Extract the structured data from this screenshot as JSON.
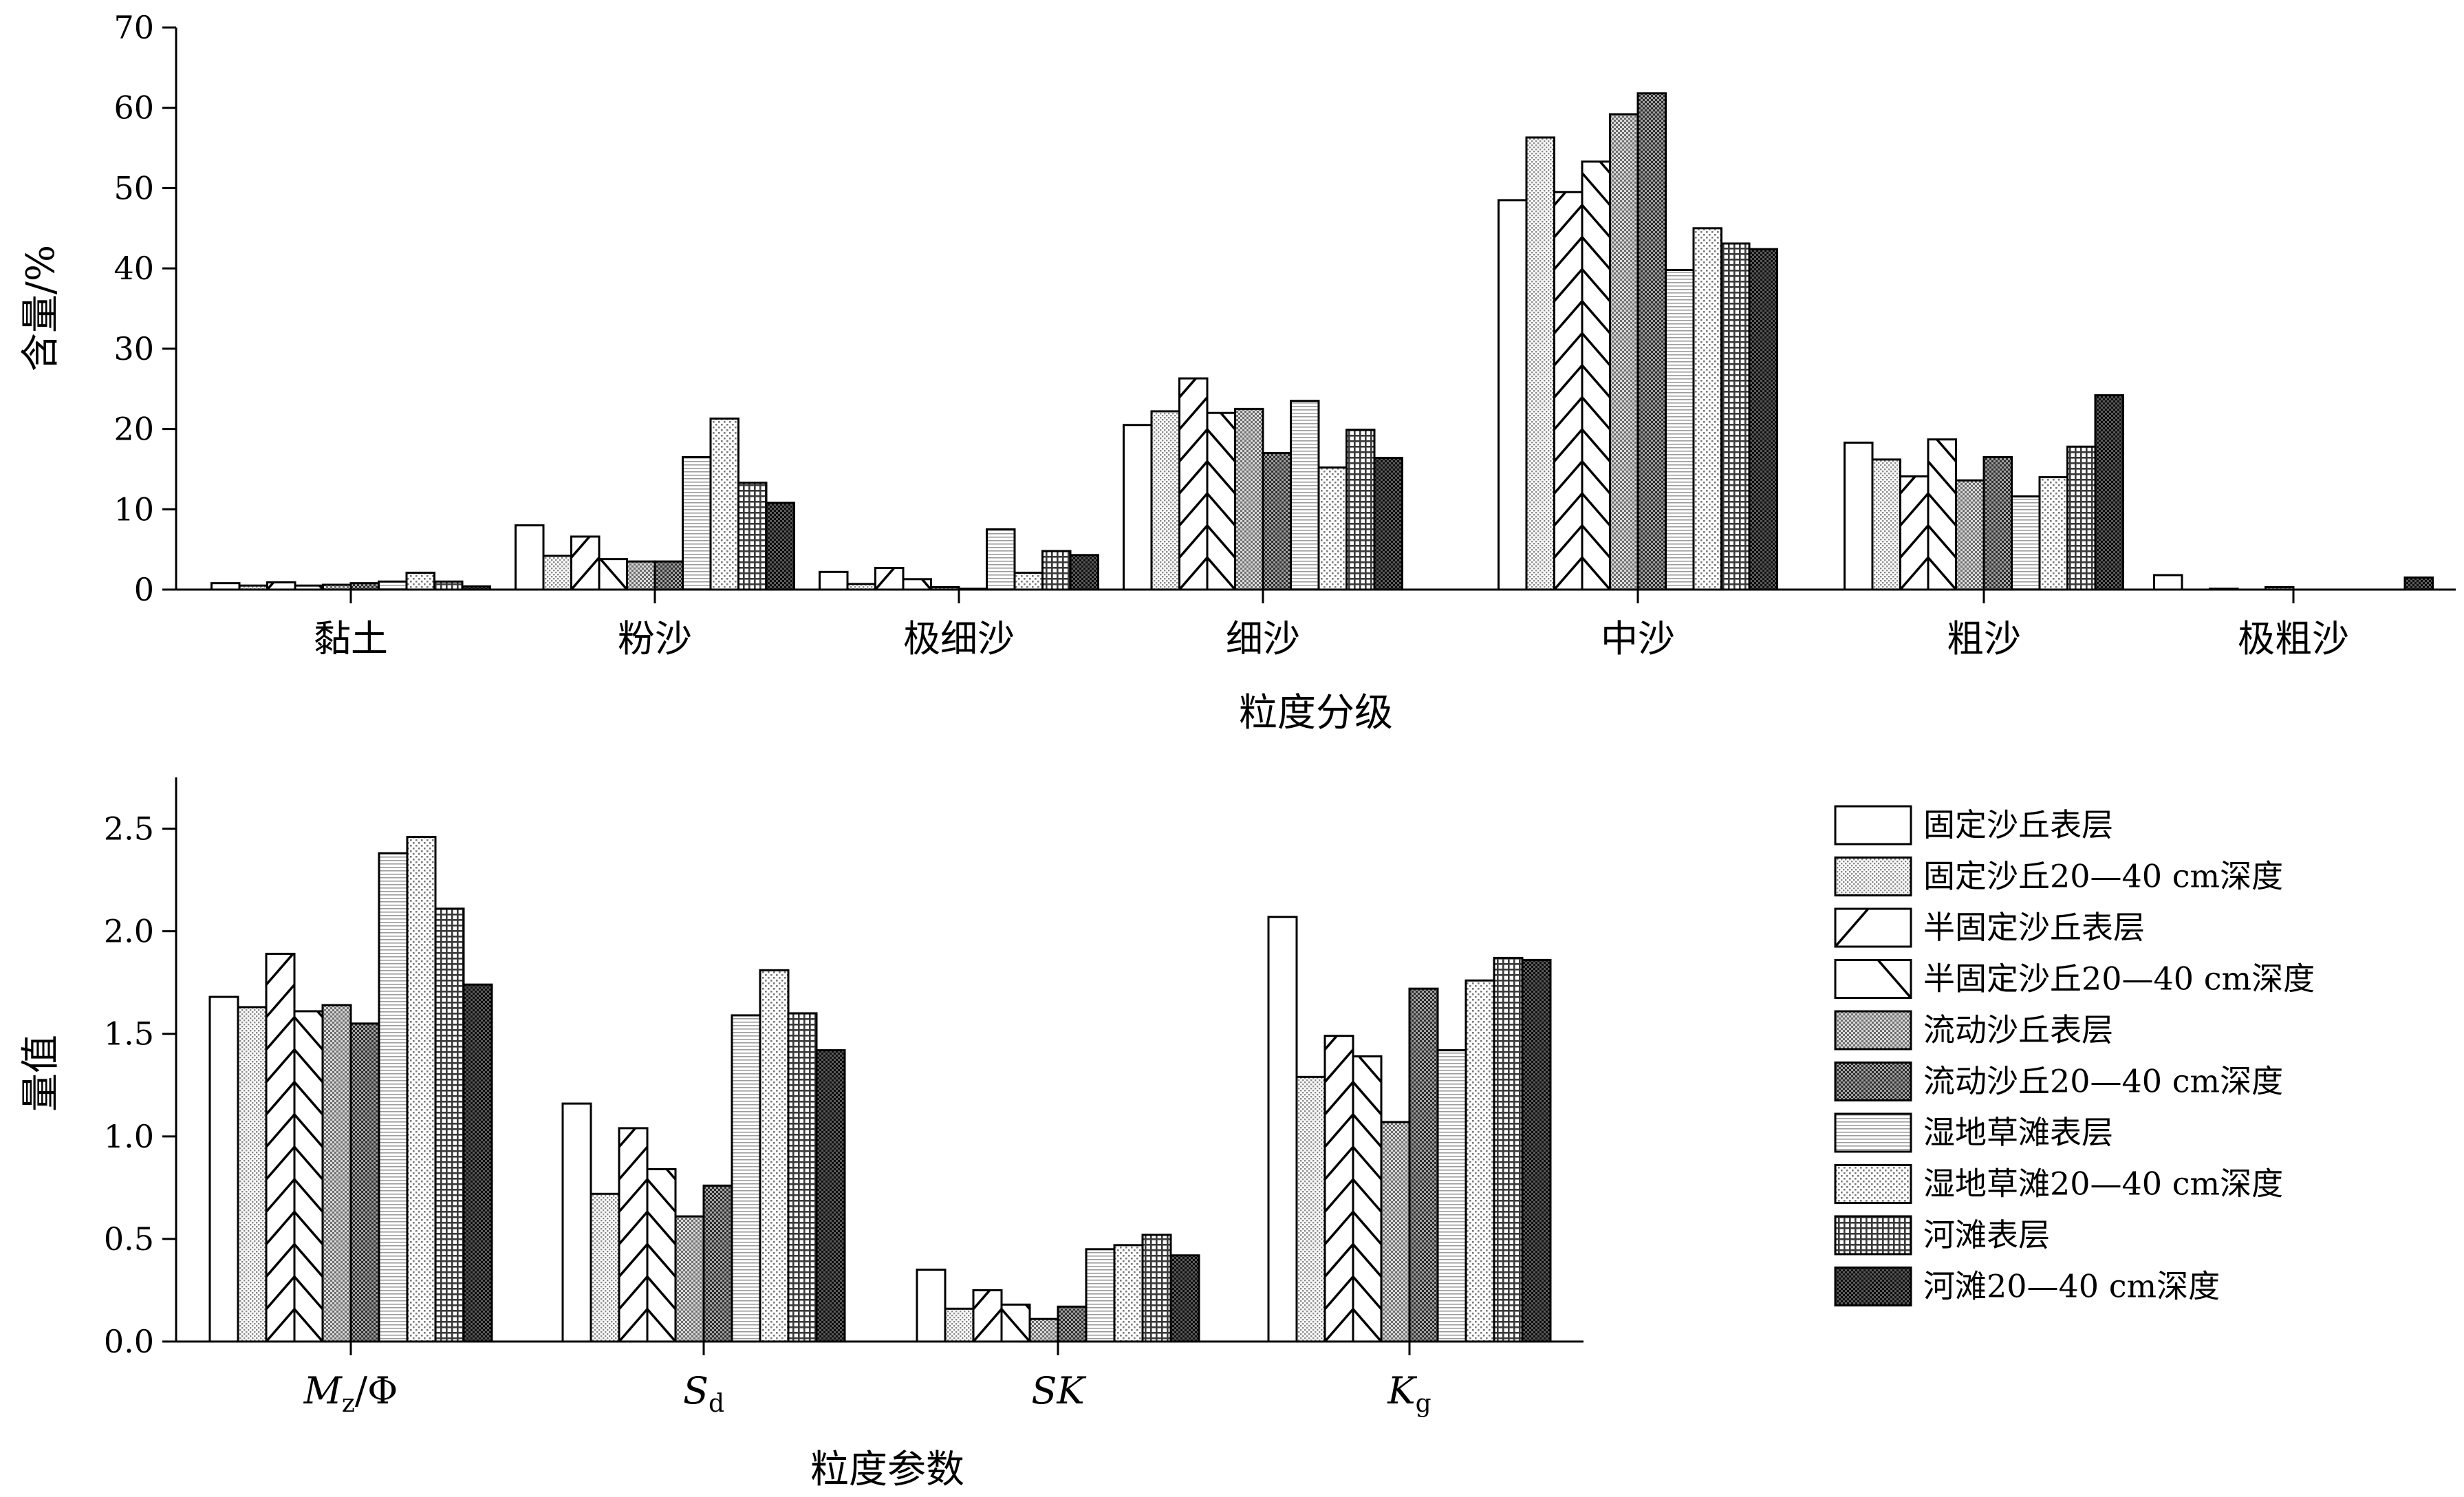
{
  "colors": {
    "ink": "#000000",
    "background": "#ffffff"
  },
  "legend": {
    "placement": "right of bottom chart",
    "entries": [
      {
        "label": "固定沙丘表层",
        "pattern": "white",
        "fill": "#ffffff"
      },
      {
        "label": "固定沙丘20—40 cm深度",
        "pattern": "light-dots",
        "fill": "#e1e1e1"
      },
      {
        "label": "半固定沙丘表层",
        "pattern": "diag-up",
        "fill": "#ffffff"
      },
      {
        "label": "半固定沙丘20—40 cm深度",
        "pattern": "diag-down",
        "fill": "#ffffff"
      },
      {
        "label": "流动沙丘表层",
        "pattern": "medium-dots",
        "fill": "#bdbdbd"
      },
      {
        "label": "流动沙丘20—40 cm深度",
        "pattern": "dark-dots",
        "fill": "#7d7d7d"
      },
      {
        "label": "湿地草滩表层",
        "pattern": "fine-hlines",
        "fill": "#eaeaea"
      },
      {
        "label": "湿地草滩20—40 cm深度",
        "pattern": "sparse-dots",
        "fill": "#d9d9d9"
      },
      {
        "label": "河滩表层",
        "pattern": "grid",
        "fill": "#8e8e8e"
      },
      {
        "label": "河滩20—40 cm深度",
        "pattern": "dense-dark",
        "fill": "#4a4a4a"
      }
    ]
  },
  "chart_data": [
    {
      "type": "bar",
      "ylabel": "含量/%",
      "xlabel": "粒度分级",
      "ylim": [
        0,
        70
      ],
      "yticks": [
        "0",
        "10",
        "20",
        "30",
        "40",
        "50",
        "60",
        "70"
      ],
      "grid": false,
      "categories": [
        "黏土",
        "粉沙",
        "极细沙",
        "细沙",
        "中沙",
        "粗沙",
        "极粗沙"
      ],
      "series": [
        {
          "name": "固定沙丘表层",
          "values": [
            0.8,
            8.0,
            2.2,
            20.5,
            48.5,
            18.3,
            1.8
          ]
        },
        {
          "name": "固定沙丘20—40 cm深度",
          "values": [
            0.5,
            4.2,
            0.7,
            22.2,
            56.3,
            16.2,
            0.0
          ]
        },
        {
          "name": "半固定沙丘表层",
          "values": [
            0.9,
            6.6,
            2.7,
            26.3,
            49.5,
            14.1,
            0.1
          ]
        },
        {
          "name": "半固定沙丘20—40 cm深度",
          "values": [
            0.5,
            3.8,
            1.3,
            22.0,
            53.3,
            18.7,
            0.0
          ]
        },
        {
          "name": "流动沙丘表层",
          "values": [
            0.6,
            3.5,
            0.3,
            22.5,
            59.2,
            13.6,
            0.3
          ]
        },
        {
          "name": "流动沙丘20—40 cm深度",
          "values": [
            0.8,
            3.5,
            0.1,
            17.0,
            61.8,
            16.5,
            0.0
          ]
        },
        {
          "name": "湿地草滩表层",
          "values": [
            1.0,
            16.5,
            7.5,
            23.5,
            39.8,
            11.6,
            0.0
          ]
        },
        {
          "name": "湿地草滩20—40 cm深度",
          "values": [
            2.1,
            21.3,
            2.1,
            15.2,
            45.0,
            14.0,
            0.0
          ]
        },
        {
          "name": "河滩表层",
          "values": [
            1.0,
            13.3,
            4.8,
            19.9,
            43.1,
            17.8,
            0.0
          ]
        },
        {
          "name": "河滩20—40 cm深度",
          "values": [
            0.4,
            10.8,
            4.3,
            16.4,
            42.4,
            24.2,
            1.5
          ]
        }
      ]
    },
    {
      "type": "bar",
      "ylabel": "量值",
      "xlabel": "粒度参数",
      "ylim": [
        0,
        2.75
      ],
      "yticks": [
        "0.0",
        "0.5",
        "1.0",
        "1.5",
        "2.0",
        "2.5"
      ],
      "grid": false,
      "categories": [
        {
          "main": "M",
          "sub": "z",
          "rest": "/Φ"
        },
        {
          "main": "S",
          "sub": "d",
          "rest": ""
        },
        {
          "main": "SK",
          "sub": "",
          "rest": ""
        },
        {
          "main": "K",
          "sub": "g",
          "rest": ""
        }
      ],
      "series": [
        {
          "name": "固定沙丘表层",
          "values": [
            1.68,
            1.16,
            0.35,
            2.07
          ]
        },
        {
          "name": "固定沙丘20—40 cm深度",
          "values": [
            1.63,
            0.72,
            0.16,
            1.29
          ]
        },
        {
          "name": "半固定沙丘表层",
          "values": [
            1.89,
            1.04,
            0.25,
            1.49
          ]
        },
        {
          "name": "半固定沙丘20—40 cm深度",
          "values": [
            1.61,
            0.84,
            0.18,
            1.39
          ]
        },
        {
          "name": "流动沙丘表层",
          "values": [
            1.64,
            0.61,
            0.11,
            1.07
          ]
        },
        {
          "name": "流动沙丘20—40 cm深度",
          "values": [
            1.55,
            0.76,
            0.17,
            1.72
          ]
        },
        {
          "name": "湿地草滩表层",
          "values": [
            2.38,
            1.59,
            0.45,
            1.42
          ]
        },
        {
          "name": "湿地草滩20—40 cm深度",
          "values": [
            2.46,
            1.81,
            0.47,
            1.76
          ]
        },
        {
          "name": "河滩表层",
          "values": [
            2.11,
            1.6,
            0.52,
            1.87
          ]
        },
        {
          "name": "河滩20—40 cm深度",
          "values": [
            1.74,
            1.42,
            0.42,
            1.86
          ]
        }
      ]
    }
  ]
}
